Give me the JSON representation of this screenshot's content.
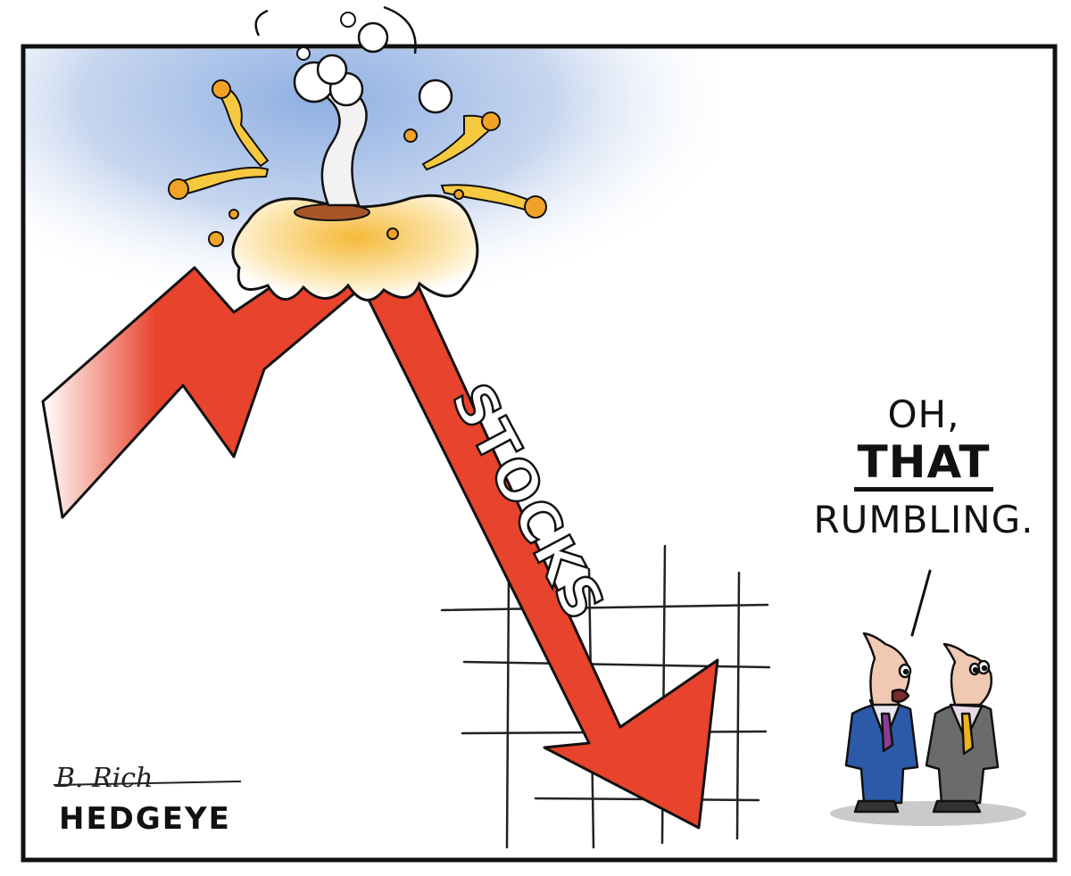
{
  "cartoon": {
    "arrow_label": "STOCKS",
    "speech": {
      "line1": "OH,",
      "line2": "THAT",
      "line3": "RUMBLING."
    },
    "signature": "B. Rich",
    "brand": "HEDGEYE"
  },
  "colors": {
    "arrow_red": "#e8432d",
    "sky_blue": "#aec3e8",
    "lava_orange": "#f0a326",
    "lava_yellow": "#f7d34a",
    "suit_blue": "#2c5aa8",
    "suit_gray": "#6b6b6b",
    "outline": "#111111"
  }
}
